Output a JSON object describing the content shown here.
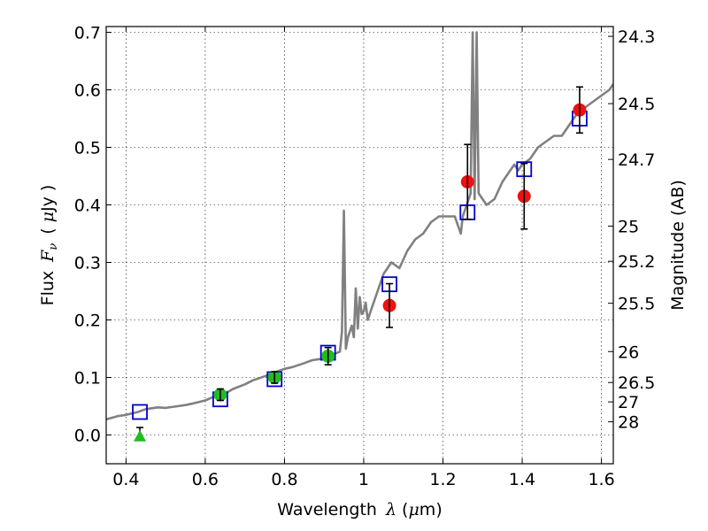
{
  "chart_data": {
    "type": "scatter",
    "title": "",
    "xlabel": "Wavelength",
    "xlabel_symbol": "λ",
    "xlabel_unit_prefix": "μ",
    "xlabel_unit_suffix": "m",
    "ylabel_left": "Flux",
    "ylabel_left_symbol": "F",
    "ylabel_left_subscript": "ν",
    "ylabel_left_unit_prefix": "μ",
    "ylabel_left_unit_suffix": "Jy",
    "ylabel_right": "Magnitude (AB)",
    "xlim": [
      0.35,
      1.63
    ],
    "ylim": [
      -0.05,
      0.71
    ],
    "grid": true,
    "x_ticks": [
      0.4,
      0.6,
      0.8,
      1.0,
      1.2,
      1.4,
      1.6
    ],
    "x_tick_labels": [
      "0.4",
      "0.6",
      "0.8",
      "1",
      "1.2",
      "1.4",
      "1.6"
    ],
    "y_ticks": [
      0.0,
      0.1,
      0.2,
      0.3,
      0.4,
      0.5,
      0.6,
      0.7
    ],
    "y_tick_labels": [
      "0.0",
      "0.1",
      "0.2",
      "0.3",
      "0.4",
      "0.5",
      "0.6",
      "0.7"
    ],
    "right_ticks": [
      {
        "label": "24.3",
        "flux": 0.693
      },
      {
        "label": "24.5",
        "flux": 0.576
      },
      {
        "label": "24.7",
        "flux": 0.479
      },
      {
        "label": "25",
        "flux": 0.363
      },
      {
        "label": "25.2",
        "flux": 0.302
      },
      {
        "label": "25.5",
        "flux": 0.229
      },
      {
        "label": "26",
        "flux": 0.145
      },
      {
        "label": "26.5",
        "flux": 0.0912
      },
      {
        "label": "27",
        "flux": 0.0575
      },
      {
        "label": "28",
        "flux": 0.0229
      }
    ],
    "series": [
      {
        "name": "model-spectrum",
        "kind": "line",
        "color": "#808080",
        "x": [
          0.35,
          0.38,
          0.4,
          0.43,
          0.45,
          0.48,
          0.5,
          0.53,
          0.55,
          0.57,
          0.6,
          0.62,
          0.65,
          0.67,
          0.7,
          0.72,
          0.75,
          0.78,
          0.8,
          0.82,
          0.85,
          0.87,
          0.89,
          0.91,
          0.92,
          0.93,
          0.94,
          0.945,
          0.95,
          0.955,
          0.96,
          0.97,
          0.975,
          0.98,
          0.985,
          0.99,
          0.995,
          1.0,
          1.005,
          1.01,
          1.02,
          1.03,
          1.05,
          1.07,
          1.09,
          1.11,
          1.13,
          1.15,
          1.17,
          1.19,
          1.21,
          1.23,
          1.24,
          1.245,
          1.25,
          1.26,
          1.27,
          1.275,
          1.28,
          1.285,
          1.29,
          1.31,
          1.33,
          1.35,
          1.37,
          1.38,
          1.39,
          1.4,
          1.42,
          1.44,
          1.46,
          1.48,
          1.5,
          1.52,
          1.54,
          1.56,
          1.58,
          1.6,
          1.62,
          1.63
        ],
        "y": [
          0.027,
          0.033,
          0.035,
          0.04,
          0.045,
          0.048,
          0.047,
          0.05,
          0.052,
          0.055,
          0.06,
          0.066,
          0.072,
          0.08,
          0.088,
          0.095,
          0.102,
          0.11,
          0.115,
          0.118,
          0.125,
          0.13,
          0.132,
          0.138,
          0.14,
          0.142,
          0.145,
          0.18,
          0.39,
          0.15,
          0.17,
          0.19,
          0.17,
          0.255,
          0.185,
          0.24,
          0.21,
          0.215,
          0.23,
          0.2,
          0.22,
          0.24,
          0.28,
          0.3,
          0.29,
          0.32,
          0.34,
          0.35,
          0.37,
          0.38,
          0.38,
          0.38,
          0.36,
          0.35,
          0.38,
          0.4,
          0.42,
          0.7,
          0.41,
          0.7,
          0.42,
          0.4,
          0.41,
          0.44,
          0.46,
          0.47,
          0.46,
          0.47,
          0.48,
          0.5,
          0.51,
          0.52,
          0.52,
          0.54,
          0.56,
          0.57,
          0.58,
          0.59,
          0.6,
          0.61
        ]
      },
      {
        "name": "model-photometry",
        "kind": "open-square",
        "color": "#0000cc",
        "x": [
          0.435,
          0.638,
          0.775,
          0.91,
          1.065,
          1.262,
          1.405,
          1.545
        ],
        "y": [
          0.04,
          0.062,
          0.097,
          0.143,
          0.262,
          0.387,
          0.462,
          0.55
        ]
      },
      {
        "name": "observed-optical",
        "kind": "filled-circle",
        "color": "#22bb22",
        "x": [
          0.638,
          0.775,
          0.91
        ],
        "y": [
          0.07,
          0.1,
          0.137
        ],
        "yerr": [
          0.01,
          0.01,
          0.015
        ]
      },
      {
        "name": "observed-nir",
        "kind": "filled-circle",
        "color": "#ee1111",
        "x": [
          1.065,
          1.262,
          1.405,
          1.545
        ],
        "y": [
          0.225,
          0.44,
          0.415,
          0.565
        ],
        "yerr": [
          0.038,
          0.065,
          0.057,
          0.04
        ]
      },
      {
        "name": "upper-limit",
        "kind": "triangle",
        "color": "#22bb22",
        "x": [
          0.435
        ],
        "y": [
          -0.002
        ],
        "yerr": [
          0.015
        ]
      }
    ]
  }
}
